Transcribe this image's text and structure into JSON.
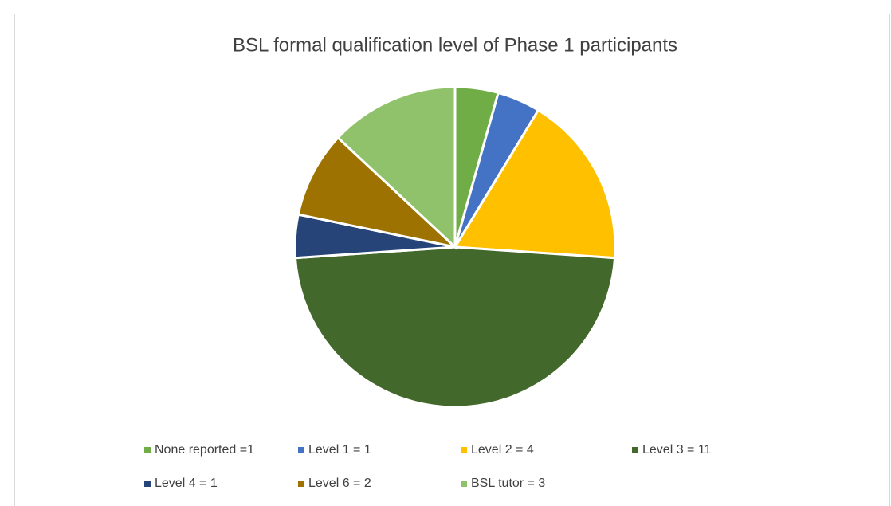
{
  "chart_data": {
    "type": "pie",
    "title": "BSL formal qualification level of Phase 1 participants",
    "categories": [
      "None reported =1",
      "Level 1 = 1",
      "Level 2 = 4",
      "Level 3 = 11",
      "Level 4 = 1",
      "Level 6 = 2",
      "BSL tutor = 3"
    ],
    "values": [
      1,
      1,
      4,
      11,
      1,
      2,
      3
    ],
    "colors": [
      "#70ad47",
      "#4472c4",
      "#ffc000",
      "#43682b",
      "#264478",
      "#9e7200",
      "#8fc26a"
    ],
    "legend": "bottom"
  }
}
